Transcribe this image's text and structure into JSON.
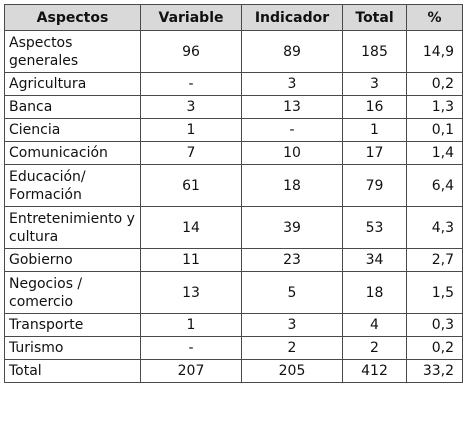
{
  "table": {
    "headers": [
      "Aspectos",
      "Variable",
      "Indicador",
      "Total",
      "%"
    ],
    "rows": [
      {
        "aspecto": "Aspectos generales",
        "variable": "96",
        "indicador": "89",
        "total": "185",
        "pct": "14,9"
      },
      {
        "aspecto": "Agricultura",
        "variable": "-",
        "indicador": "3",
        "total": "3",
        "pct": "0,2"
      },
      {
        "aspecto": "Banca",
        "variable": "3",
        "indicador": "13",
        "total": "16",
        "pct": "1,3"
      },
      {
        "aspecto": "Ciencia",
        "variable": "1",
        "indicador": "-",
        "total": "1",
        "pct": "0,1"
      },
      {
        "aspecto": "Comunicación",
        "variable": "7",
        "indicador": "10",
        "total": "17",
        "pct": "1,4"
      },
      {
        "aspecto": "Educación/ Formación",
        "variable": "61",
        "indicador": "18",
        "total": "79",
        "pct": "6,4"
      },
      {
        "aspecto": "Entretenimiento y cultura",
        "variable": "14",
        "indicador": "39",
        "total": "53",
        "pct": "4,3"
      },
      {
        "aspecto": "Gobierno",
        "variable": "11",
        "indicador": "23",
        "total": "34",
        "pct": "2,7"
      },
      {
        "aspecto": "Negocios / comercio",
        "variable": "13",
        "indicador": "5",
        "total": "18",
        "pct": "1,5"
      },
      {
        "aspecto": "Transporte",
        "variable": "1",
        "indicador": "3",
        "total": "4",
        "pct": "0,3"
      },
      {
        "aspecto": "Turismo",
        "variable": "-",
        "indicador": "2",
        "total": "2",
        "pct": "0,2"
      },
      {
        "aspecto": "Total",
        "variable": "207",
        "indicador": "205",
        "total": "412",
        "pct": "33,2"
      }
    ]
  },
  "colors": {
    "header_background": "#d9d9d9",
    "border": "#4a4a4a",
    "text": "#111111"
  }
}
